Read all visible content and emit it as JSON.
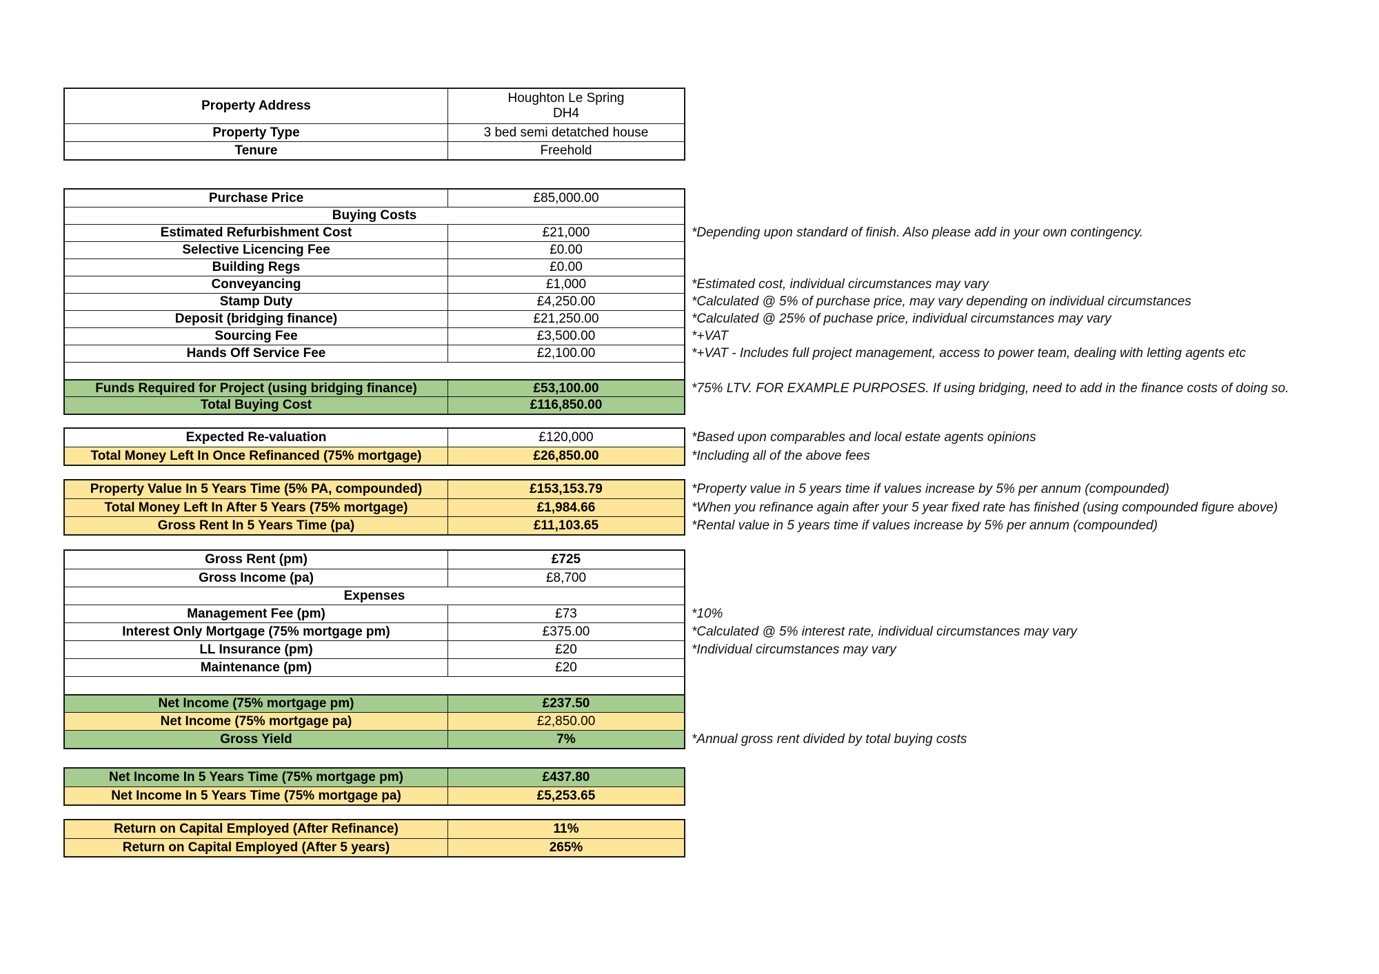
{
  "colors": {
    "green_fill": "#a6cd90",
    "yellow_fill": "#fde699",
    "border": "#161616"
  },
  "address": {
    "rows": [
      {
        "label": "Property Address",
        "value_line1": "Houghton Le Spring",
        "value_line2": "DH4"
      },
      {
        "label": "Property Type",
        "value": "3 bed semi detatched house"
      },
      {
        "label": "Tenure",
        "value": "Freehold"
      }
    ]
  },
  "buying": {
    "rows": [
      {
        "label": "Purchase Price",
        "value": "£85,000.00"
      },
      {
        "header": "Buying Costs"
      },
      {
        "label": "Estimated Refurbishment Cost",
        "value": "£21,000",
        "note": "*Depending upon standard of finish. Also please add in your own contingency."
      },
      {
        "label": "Selective Licencing Fee",
        "value": "£0.00"
      },
      {
        "label": "Building Regs",
        "value": "£0.00"
      },
      {
        "label": "Conveyancing",
        "value": "£1,000",
        "note": "*Estimated cost, individual circumstances may vary"
      },
      {
        "label": "Stamp Duty",
        "value": "£4,250.00",
        "note": "*Calculated @ 5% of purchase price, may vary depending on individual circumstances"
      },
      {
        "label": "Deposit (bridging finance)",
        "value": "£21,250.00",
        "note": "*Calculated @ 25% of puchase price, individual circumstances may vary"
      },
      {
        "label": "Sourcing Fee",
        "value": "£3,500.00",
        "note": "*+VAT"
      },
      {
        "label": "Hands Off Service Fee",
        "value": "£2,100.00",
        "note": "*+VAT - Includes full project management, access to power team, dealing with letting agents etc"
      },
      {
        "empty": true
      },
      {
        "label": "Funds Required for Project (using bridging finance)",
        "value": "£53,100.00",
        "fill": "green",
        "note": "*75% LTV. FOR EXAMPLE PURPOSES. If using bridging, need to add in the finance costs of doing so."
      },
      {
        "label": "Total Buying Cost",
        "value": "£116,850.00",
        "fill": "green"
      }
    ]
  },
  "revaluation": {
    "rows": [
      {
        "label": "Expected Re-valuation",
        "value": "£120,000",
        "note": "*Based upon comparables and local estate agents opinions"
      },
      {
        "label": "Total Money Left In Once Refinanced (75% mortgage)",
        "value": "£26,850.00",
        "fill": "yellow",
        "note": "*Including all of the above fees"
      }
    ]
  },
  "five_year": {
    "rows": [
      {
        "label": "Property Value In 5 Years Time (5% PA, compounded)",
        "value": "£153,153.79",
        "fill": "yellow",
        "note": "*Property value in 5 years time if values increase by 5% per annum (compounded)"
      },
      {
        "label": "Total Money Left In After 5 Years (75% mortgage)",
        "value": "£1,984.66",
        "fill": "yellow",
        "note": "*When you refinance again after your 5 year fixed rate has finished (using compounded figure above)"
      },
      {
        "label": "Gross Rent In 5 Years Time (pa)",
        "value": "£11,103.65",
        "fill": "yellow",
        "note": "*Rental value in 5 years time if values increase by 5% per annum (compounded)"
      }
    ]
  },
  "income": {
    "rows": [
      {
        "label": "Gross Rent (pm)",
        "value": "£725"
      },
      {
        "label": "Gross Income (pa)",
        "value": "£8,700"
      },
      {
        "header": "Expenses"
      },
      {
        "label": "Management Fee (pm)",
        "value": "£73",
        "note": "*10%"
      },
      {
        "label": "Interest Only Mortgage (75% mortgage pm)",
        "value": "£375.00",
        "note": "*Calculated @ 5% interest rate, individual circumstances may vary"
      },
      {
        "label": "LL Insurance (pm)",
        "value": "£20",
        "note": "*Individual circumstances may vary"
      },
      {
        "label": "Maintenance (pm)",
        "value": "£20"
      },
      {
        "empty": true
      },
      {
        "label": "Net Income (75% mortgage pm)",
        "value": "£237.50",
        "fill": "green"
      },
      {
        "label": "Net Income (75% mortgage pa)",
        "value": "£2,850.00",
        "fill": "yellow"
      },
      {
        "label": "Gross Yield",
        "value": "7%",
        "fill": "green",
        "note": "*Annual gross rent divided by total buying costs"
      }
    ]
  },
  "five_year_income": {
    "rows": [
      {
        "label": "Net Income In 5 Years Time (75% mortgage pm)",
        "value": "£437.80",
        "fill": "green"
      },
      {
        "label": "Net Income In 5 Years Time (75% mortgage pa)",
        "value": "£5,253.65",
        "fill": "yellow"
      }
    ]
  },
  "roce": {
    "rows": [
      {
        "label": "Return on Capital Employed (After Refinance)",
        "value": "11%",
        "fill": "yellow"
      },
      {
        "label": "Return on Capital Employed (After 5 years)",
        "value": "265%",
        "fill": "yellow"
      }
    ]
  }
}
